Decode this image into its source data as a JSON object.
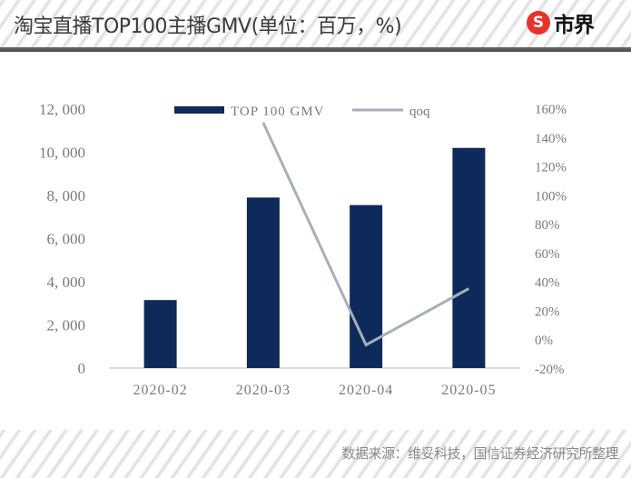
{
  "header": {
    "title": "淘宝直播TOP100主播GMV(单位：百万，%)",
    "logo_mark": "S",
    "logo_text": "市界"
  },
  "footer": {
    "source": "数据来源：维妥科技，国信证券经济研究所整理"
  },
  "colors": {
    "bar": "#0d2a5a",
    "line": "#a5b0ba",
    "axis_text": "#7a7a7a",
    "axis_line": "#d0d0d0",
    "logo_red": "#e8322c"
  },
  "chart_data": {
    "type": "bar+line",
    "title": "淘宝直播TOP100主播GMV(单位：百万，%)",
    "categories": [
      "2020-02",
      "2020-03",
      "2020-04",
      "2020-05"
    ],
    "series": [
      {
        "name": "TOP 100 GMV",
        "type": "bar",
        "axis": "left",
        "values": [
          3150,
          7900,
          7550,
          10200
        ]
      },
      {
        "name": "qoq",
        "type": "line",
        "axis": "right",
        "values": [
          null,
          150,
          -4,
          35
        ],
        "unit": "%"
      }
    ],
    "left_axis": {
      "ylim": [
        0,
        12000
      ],
      "ticks": [
        0,
        2000,
        4000,
        6000,
        8000,
        10000,
        12000
      ],
      "tick_labels": [
        "0",
        "2, 000",
        "4, 000",
        "6, 000",
        "8, 000",
        "10, 000",
        "12, 000"
      ]
    },
    "right_axis": {
      "ylim": [
        -20,
        160
      ],
      "ticks": [
        -20,
        0,
        20,
        40,
        60,
        80,
        100,
        120,
        140,
        160
      ],
      "tick_labels": [
        "-20%",
        "0%",
        "20%",
        "40%",
        "60%",
        "80%",
        "100%",
        "120%",
        "140%",
        "160%"
      ]
    },
    "xlabel": "",
    "ylabel": "",
    "legend": {
      "position": "top-center-inside",
      "entries": [
        "TOP 100 GMV",
        "qoq"
      ]
    },
    "grid": false
  }
}
